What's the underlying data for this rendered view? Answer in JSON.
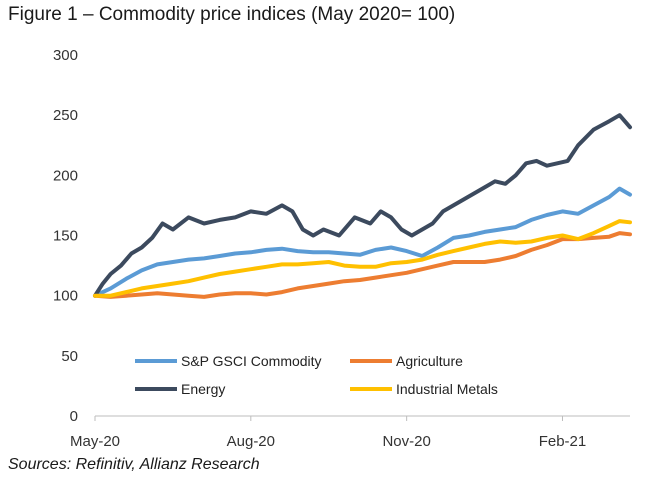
{
  "title": "Figure 1 – Commodity price indices (May 2020= 100)",
  "source": "Sources: Refinitiv, Allianz Research",
  "chart_data": {
    "type": "line",
    "x_tick_labels": [
      "May-20",
      "Aug-20",
      "Nov-20",
      "Feb-21"
    ],
    "x_ticks_month_index": [
      0,
      3,
      6,
      9
    ],
    "xlim_month_index": [
      0,
      10.3
    ],
    "ylim": [
      0,
      300
    ],
    "y_ticks": [
      0,
      50,
      100,
      150,
      200,
      250,
      300
    ],
    "grid": false,
    "legend": [
      "S&P GSCI Commodity",
      "Agriculture",
      "Energy",
      "Industrial Metals"
    ],
    "series": [
      {
        "name": "S&P GSCI Commodity",
        "color": "#5b9bd5",
        "x": [
          0,
          0.3,
          0.6,
          0.9,
          1.2,
          1.5,
          1.8,
          2.1,
          2.4,
          2.7,
          3.0,
          3.3,
          3.6,
          3.9,
          4.2,
          4.5,
          4.8,
          5.1,
          5.4,
          5.7,
          6.0,
          6.3,
          6.6,
          6.9,
          7.2,
          7.5,
          7.8,
          8.1,
          8.4,
          8.7,
          9.0,
          9.3,
          9.6,
          9.9,
          10.1,
          10.3
        ],
        "values": [
          100,
          106,
          114,
          121,
          126,
          128,
          130,
          131,
          133,
          135,
          136,
          138,
          139,
          137,
          136,
          136,
          135,
          134,
          138,
          140,
          137,
          133,
          140,
          148,
          150,
          153,
          155,
          157,
          163,
          167,
          170,
          168,
          175,
          182,
          189,
          184
        ]
      },
      {
        "name": "Agriculture",
        "color": "#ed7d31",
        "x": [
          0,
          0.3,
          0.6,
          0.9,
          1.2,
          1.5,
          1.8,
          2.1,
          2.4,
          2.7,
          3.0,
          3.3,
          3.6,
          3.9,
          4.2,
          4.5,
          4.8,
          5.1,
          5.4,
          5.7,
          6.0,
          6.3,
          6.6,
          6.9,
          7.2,
          7.5,
          7.8,
          8.1,
          8.4,
          8.7,
          9.0,
          9.3,
          9.6,
          9.9,
          10.1,
          10.3
        ],
        "values": [
          100,
          99,
          100,
          101,
          102,
          101,
          100,
          99,
          101,
          102,
          102,
          101,
          103,
          106,
          108,
          110,
          112,
          113,
          115,
          117,
          119,
          122,
          125,
          128,
          128,
          128,
          130,
          133,
          138,
          142,
          147,
          147,
          148,
          149,
          152,
          151
        ]
      },
      {
        "name": "Energy",
        "color": "#3c4a5e",
        "x": [
          0,
          0.15,
          0.3,
          0.5,
          0.7,
          0.9,
          1.1,
          1.3,
          1.5,
          1.8,
          2.1,
          2.4,
          2.7,
          3.0,
          3.3,
          3.6,
          3.8,
          4.0,
          4.2,
          4.4,
          4.7,
          5.0,
          5.3,
          5.5,
          5.7,
          5.9,
          6.1,
          6.3,
          6.5,
          6.7,
          6.9,
          7.1,
          7.3,
          7.5,
          7.7,
          7.9,
          8.1,
          8.3,
          8.5,
          8.7,
          8.9,
          9.1,
          9.3,
          9.6,
          9.9,
          10.1,
          10.3
        ],
        "values": [
          100,
          110,
          118,
          125,
          135,
          140,
          148,
          160,
          155,
          165,
          160,
          163,
          165,
          170,
          168,
          175,
          170,
          155,
          150,
          155,
          150,
          165,
          160,
          170,
          165,
          155,
          150,
          155,
          160,
          170,
          175,
          180,
          185,
          190,
          195,
          193,
          200,
          210,
          212,
          208,
          210,
          212,
          225,
          238,
          245,
          250,
          240
        ]
      },
      {
        "name": "Industrial Metals",
        "color": "#ffc000",
        "x": [
          0,
          0.3,
          0.6,
          0.9,
          1.2,
          1.5,
          1.8,
          2.1,
          2.4,
          2.7,
          3.0,
          3.3,
          3.6,
          3.9,
          4.2,
          4.5,
          4.8,
          5.1,
          5.4,
          5.7,
          6.0,
          6.3,
          6.6,
          6.9,
          7.2,
          7.5,
          7.8,
          8.1,
          8.4,
          8.7,
          9.0,
          9.3,
          9.6,
          9.9,
          10.1,
          10.3
        ],
        "values": [
          100,
          100,
          103,
          106,
          108,
          110,
          112,
          115,
          118,
          120,
          122,
          124,
          126,
          126,
          127,
          128,
          125,
          124,
          124,
          127,
          128,
          130,
          134,
          137,
          140,
          143,
          145,
          144,
          145,
          148,
          150,
          147,
          152,
          158,
          162,
          161
        ]
      }
    ]
  }
}
